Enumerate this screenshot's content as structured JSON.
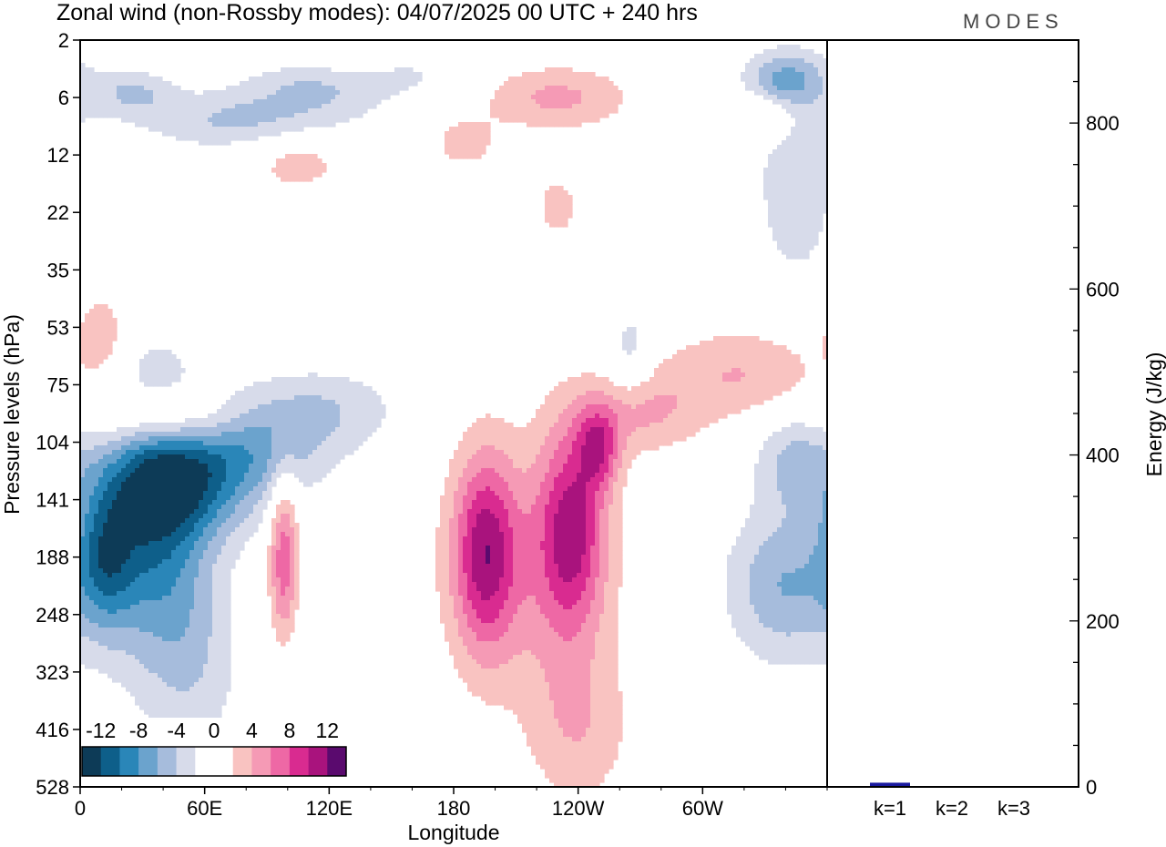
{
  "title": "Zonal wind (non-Rossby modes):  04/07/2025  00 UTC  + 240 hrs",
  "logo": "MODES",
  "hovmoller": {
    "type": "heatmap",
    "xlabel": "Longitude",
    "ylabel": "Pressure levels (hPa)",
    "x_ticks": [
      {
        "label": "0",
        "lon": 0
      },
      {
        "label": "60E",
        "lon": 60
      },
      {
        "label": "120E",
        "lon": 120
      },
      {
        "label": "180",
        "lon": 180
      },
      {
        "label": "120W",
        "lon": 240
      },
      {
        "label": "60W",
        "lon": 300
      }
    ],
    "xlim": [
      0,
      360
    ],
    "y_levels": [
      "2",
      "6",
      "12",
      "22",
      "35",
      "53",
      "75",
      "104",
      "141",
      "188",
      "248",
      "323",
      "416",
      "528"
    ],
    "colorbar": {
      "labels": [
        "-12",
        "-8",
        "-4",
        "0",
        "4",
        "8",
        "12"
      ],
      "colors": [
        "#0d3b57",
        "#0e5f8a",
        "#2a86b8",
        "#6ba3cd",
        "#a6bcdc",
        "#d7dbea",
        "#ffffff",
        "#ffffff",
        "#f9c3c1",
        "#f59ab5",
        "#ee68a5",
        "#d92b90",
        "#a9137d",
        "#5a0a6e"
      ]
    },
    "features": [
      {
        "sign": "neg",
        "lon": 35,
        "lev": 8.3,
        "dlon": 26,
        "dlev": 2.4,
        "amp": 9.5,
        "rot": 38
      },
      {
        "sign": "neg",
        "lon": 52,
        "lev": 7.8,
        "dlon": 36,
        "dlev": 0.9,
        "amp": 7,
        "rot": 38
      },
      {
        "sign": "neg",
        "lon": 80,
        "lev": 7.1,
        "dlon": 40,
        "dlev": 0.8,
        "amp": 5.5,
        "rot": 20
      },
      {
        "sign": "neg",
        "lon": 115,
        "lev": 6.4,
        "dlon": 40,
        "dlev": 0.7,
        "amp": 3.5,
        "rot": 8
      },
      {
        "sign": "neg",
        "lon": 12,
        "lev": 9.0,
        "dlon": 14,
        "dlev": 1.2,
        "amp": 7,
        "rot": 0
      },
      {
        "sign": "neg",
        "lon": 55,
        "lev": 10.8,
        "dlon": 22,
        "dlev": 1.8,
        "amp": 3,
        "rot": 20
      },
      {
        "sign": "neg",
        "lon": 340,
        "lev": 9.5,
        "dlon": 28,
        "dlev": 1.3,
        "amp": 6,
        "rot": -15
      },
      {
        "sign": "neg",
        "lon": 345,
        "lev": 7.3,
        "dlon": 20,
        "dlev": 0.9,
        "amp": 4.5,
        "rot": 0
      },
      {
        "sign": "neg",
        "lon": 345,
        "lev": 2.5,
        "dlon": 20,
        "dlev": 1.8,
        "amp": 3.5,
        "rot": 0
      },
      {
        "sign": "neg",
        "lon": 340,
        "lev": 0.7,
        "dlon": 20,
        "dlev": 0.5,
        "amp": 6,
        "rot": 0
      },
      {
        "sign": "neg",
        "lon": 80,
        "lev": 1.4,
        "dlon": 50,
        "dlev": 0.5,
        "amp": 4.5,
        "rot": 10
      },
      {
        "sign": "neg",
        "lon": 125,
        "lev": 0.8,
        "dlon": 40,
        "dlev": 0.45,
        "amp": 5,
        "rot": 12
      },
      {
        "sign": "neg",
        "lon": 25,
        "lev": 0.9,
        "dlon": 20,
        "dlev": 0.4,
        "amp": 4,
        "rot": 0
      },
      {
        "sign": "neg",
        "lon": 150,
        "lev": 0.5,
        "dlon": 25,
        "dlev": 0.4,
        "amp": 3,
        "rot": 10
      },
      {
        "sign": "neg",
        "lon": 265,
        "lev": 5.4,
        "dlon": 10,
        "dlev": 0.8,
        "amp": 3,
        "rot": 0
      },
      {
        "sign": "neg",
        "lon": 110,
        "lev": 12.0,
        "dlon": 25,
        "dlev": 1.5,
        "amp": 2,
        "rot": 0
      },
      {
        "sign": "pos",
        "lon": 195,
        "lev": 8.9,
        "dlon": 15,
        "dlev": 1.7,
        "amp": 9,
        "rot": 0
      },
      {
        "sign": "pos",
        "lon": 237,
        "lev": 8.5,
        "dlon": 16,
        "dlev": 1.8,
        "amp": 9,
        "rot": -8
      },
      {
        "sign": "pos",
        "lon": 215,
        "lev": 9.2,
        "dlon": 40,
        "dlev": 2.2,
        "amp": 4,
        "rot": 0
      },
      {
        "sign": "pos",
        "lon": 250,
        "lev": 7.1,
        "dlon": 10,
        "dlev": 0.7,
        "amp": 7,
        "rot": 0
      },
      {
        "sign": "pos",
        "lon": 270,
        "lev": 6.5,
        "dlon": 30,
        "dlev": 0.7,
        "amp": 4,
        "rot": 0
      },
      {
        "sign": "pos",
        "lon": 320,
        "lev": 5.8,
        "dlon": 40,
        "dlev": 0.8,
        "amp": 4,
        "rot": 0
      },
      {
        "sign": "pos",
        "lon": 240,
        "lev": 12.0,
        "dlon": 25,
        "dlev": 1.4,
        "amp": 3.5,
        "rot": 0
      },
      {
        "sign": "pos",
        "lon": 98,
        "lev": 9.0,
        "dlon": 7,
        "dlev": 1.5,
        "amp": 7.5,
        "rot": 0
      },
      {
        "sign": "pos",
        "lon": 40,
        "lev": 6.6,
        "dlon": 32,
        "dlev": 0.55,
        "amp": 6.5,
        "rot": 15
      },
      {
        "sign": "pos",
        "lon": 10,
        "lev": 5.1,
        "dlon": 12,
        "dlev": 0.7,
        "amp": 4,
        "rot": 0
      },
      {
        "sign": "pos",
        "lon": 230,
        "lev": 1.0,
        "dlon": 35,
        "dlev": 0.55,
        "amp": 4.5,
        "rot": 0
      },
      {
        "sign": "pos",
        "lon": 140,
        "lev": 0.6,
        "dlon": 25,
        "dlev": 0.5,
        "amp": 4,
        "rot": 10
      },
      {
        "sign": "pos",
        "lon": 330,
        "lev": 1.3,
        "dlon": 15,
        "dlev": 0.4,
        "amp": 3.5,
        "rot": 0
      },
      {
        "sign": "pos",
        "lon": 105,
        "lev": 2.1,
        "dlon": 25,
        "dlev": 0.6,
        "amp": 3,
        "rot": 0
      },
      {
        "sign": "pos",
        "lon": 230,
        "lev": 2.9,
        "dlon": 15,
        "dlev": 0.8,
        "amp": 2.5,
        "rot": 0
      },
      {
        "sign": "pos",
        "lon": 185,
        "lev": 1.8,
        "dlon": 18,
        "dlev": 0.5,
        "amp": 2.8,
        "rot": 0
      }
    ]
  },
  "energy": {
    "type": "bar",
    "ylabel": "Energy (J/kg)",
    "ylim": [
      0,
      900
    ],
    "yticks": [
      200,
      400,
      600,
      800
    ],
    "categories": [
      "k=1",
      "k=2",
      "k=3"
    ],
    "values": [
      5,
      1,
      1
    ],
    "bar_color": "#1a1a9e"
  }
}
